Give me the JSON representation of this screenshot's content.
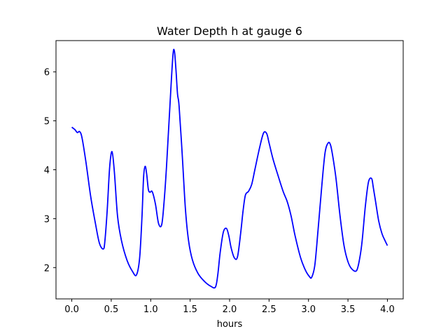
{
  "chart_data": {
    "type": "line",
    "title": "Water Depth h at gauge 6",
    "xlabel": "hours",
    "ylabel": "",
    "xlim": [
      -0.2,
      4.2
    ],
    "ylim": [
      1.36,
      6.64
    ],
    "xticks": [
      0.0,
      0.5,
      1.0,
      1.5,
      2.0,
      2.5,
      3.0,
      3.5,
      4.0
    ],
    "xtick_labels": [
      "0.0",
      "0.5",
      "1.0",
      "1.5",
      "2.0",
      "2.5",
      "3.0",
      "3.5",
      "4.0"
    ],
    "yticks": [
      2,
      3,
      4,
      5,
      6
    ],
    "ytick_labels": [
      "2",
      "3",
      "4",
      "5",
      "6"
    ],
    "grid": false,
    "legend": "none",
    "series": [
      {
        "color": "#0000ff",
        "x": [
          0.0,
          0.04,
          0.07,
          0.1,
          0.13,
          0.18,
          0.24,
          0.3,
          0.35,
          0.4,
          0.42,
          0.45,
          0.48,
          0.51,
          0.54,
          0.58,
          0.63,
          0.7,
          0.77,
          0.82,
          0.86,
          0.89,
          0.91,
          0.93,
          0.95,
          0.97,
          0.99,
          1.02,
          1.06,
          1.1,
          1.14,
          1.17,
          1.2,
          1.24,
          1.28,
          1.3,
          1.32,
          1.34,
          1.36,
          1.4,
          1.44,
          1.48,
          1.53,
          1.6,
          1.68,
          1.76,
          1.82,
          1.85,
          1.88,
          1.92,
          1.96,
          1.99,
          2.02,
          2.06,
          2.1,
          2.14,
          2.17,
          2.2,
          2.24,
          2.28,
          2.32,
          2.38,
          2.43,
          2.47,
          2.5,
          2.55,
          2.62,
          2.68,
          2.73,
          2.78,
          2.83,
          2.9,
          2.96,
          3.01,
          3.04,
          3.08,
          3.12,
          3.17,
          3.21,
          3.25,
          3.28,
          3.31,
          3.35,
          3.4,
          3.45,
          3.5,
          3.55,
          3.61,
          3.65,
          3.68,
          3.72,
          3.76,
          3.8,
          3.82,
          3.85,
          3.89,
          3.93,
          3.97,
          4.0
        ],
        "y": [
          4.87,
          4.82,
          4.76,
          4.78,
          4.65,
          4.15,
          3.45,
          2.9,
          2.5,
          2.38,
          2.55,
          3.2,
          4.05,
          4.37,
          3.95,
          3.05,
          2.55,
          2.15,
          1.92,
          1.85,
          2.2,
          3.05,
          3.85,
          4.07,
          3.9,
          3.6,
          3.54,
          3.55,
          3.3,
          2.9,
          2.88,
          3.35,
          4.05,
          5.2,
          6.3,
          6.43,
          6.05,
          5.55,
          5.3,
          4.3,
          3.2,
          2.55,
          2.15,
          1.88,
          1.72,
          1.62,
          1.6,
          1.85,
          2.3,
          2.72,
          2.8,
          2.65,
          2.4,
          2.2,
          2.22,
          2.7,
          3.15,
          3.48,
          3.56,
          3.7,
          4.0,
          4.45,
          4.75,
          4.74,
          4.55,
          4.22,
          3.85,
          3.55,
          3.35,
          3.05,
          2.65,
          2.2,
          1.95,
          1.82,
          1.8,
          2.05,
          2.75,
          3.7,
          4.35,
          4.55,
          4.5,
          4.25,
          3.8,
          3.05,
          2.45,
          2.12,
          1.97,
          1.94,
          2.2,
          2.55,
          3.25,
          3.75,
          3.82,
          3.65,
          3.35,
          2.95,
          2.7,
          2.55,
          2.45
        ]
      }
    ]
  }
}
